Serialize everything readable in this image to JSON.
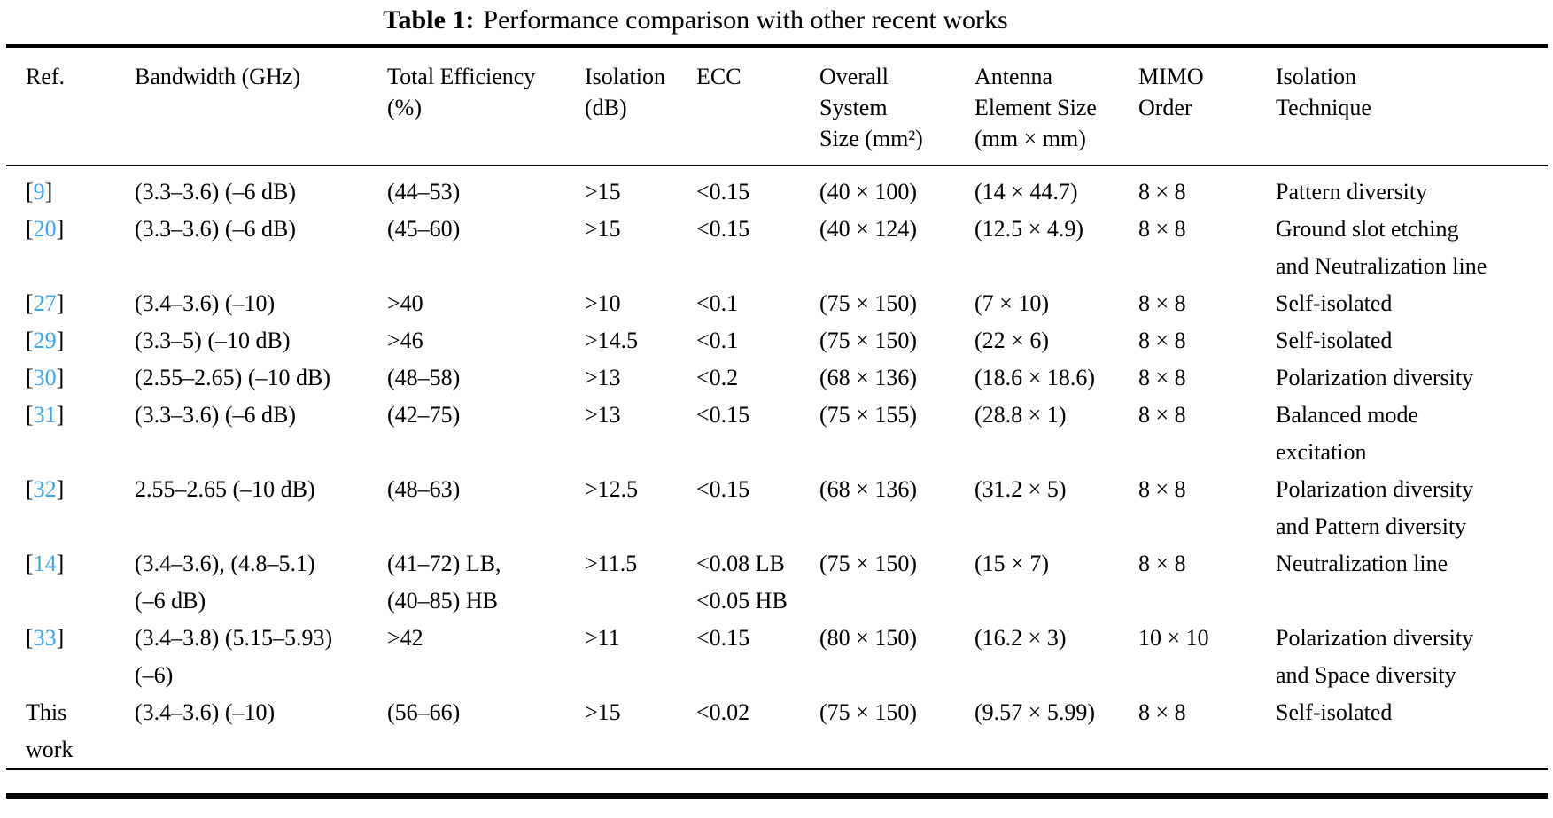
{
  "title": {
    "label": "Table 1:",
    "text": "Performance comparison with other recent works"
  },
  "colors": {
    "citation": "#3ba5f0",
    "text": "#000000",
    "background": "#ffffff",
    "rule": "#000000"
  },
  "table": {
    "citation_format": {
      "open": "[",
      "close": "]"
    },
    "headers": [
      "Ref.",
      "Bandwidth (GHz)",
      "Total Efficiency\n(%)",
      "Isolation\n(dB)",
      "ECC",
      "Overall\nSystem\nSize (mm²)",
      "Antenna\nElement Size\n(mm × mm)",
      "MIMO\nOrder",
      "Isolation\nTechnique"
    ],
    "rows": [
      {
        "ref": {
          "cite": "9"
        },
        "cells": [
          "(3.3–3.6) (–6 dB)",
          "(44–53)",
          ">15",
          "<0.15",
          "(40 × 100)",
          "(14 × 44.7)",
          "8 × 8",
          "Pattern diversity"
        ]
      },
      {
        "ref": {
          "cite": "20"
        },
        "cells": [
          "(3.3–3.6) (–6 dB)",
          "(45–60)",
          ">15",
          "<0.15",
          "(40 × 124)",
          "(12.5 × 4.9)",
          "8 × 8",
          "Ground slot etching\nand Neutralization line"
        ]
      },
      {
        "ref": {
          "cite": "27"
        },
        "cells": [
          "(3.4–3.6) (–10)",
          ">40",
          ">10",
          "<0.1",
          "(75 × 150)",
          "(7 × 10)",
          "8 × 8",
          "Self-isolated"
        ]
      },
      {
        "ref": {
          "cite": "29"
        },
        "cells": [
          "(3.3–5) (–10 dB)",
          ">46",
          ">14.5",
          "<0.1",
          "(75 × 150)",
          "(22 × 6)",
          "8 × 8",
          "Self-isolated"
        ]
      },
      {
        "ref": {
          "cite": "30"
        },
        "cells": [
          "(2.55–2.65) (–10 dB)",
          "(48–58)",
          ">13",
          "<0.2",
          "(68 × 136)",
          "(18.6 × 18.6)",
          "8 × 8",
          "Polarization diversity"
        ]
      },
      {
        "ref": {
          "cite": "31"
        },
        "cells": [
          "(3.3–3.6) (–6 dB)",
          "(42–75)",
          ">13",
          "<0.15",
          "(75 × 155)",
          "(28.8 × 1)",
          "8 × 8",
          "Balanced mode\nexcitation"
        ]
      },
      {
        "ref": {
          "cite": "32"
        },
        "cells": [
          "2.55–2.65 (–10 dB)",
          "(48–63)",
          ">12.5",
          "<0.15",
          "(68 × 136)",
          "(31.2 × 5)",
          "8 × 8",
          "Polarization diversity\nand Pattern diversity"
        ]
      },
      {
        "ref": {
          "cite": "14"
        },
        "cells": [
          "(3.4–3.6), (4.8–5.1)\n(–6 dB)",
          "(41–72) LB,\n(40–85) HB",
          ">11.5",
          "<0.08 LB\n<0.05 HB",
          "(75 × 150)",
          "(15 × 7)",
          "8 × 8",
          "Neutralization line"
        ]
      },
      {
        "ref": {
          "cite": "33"
        },
        "cells": [
          "(3.4–3.8) (5.15–5.93)\n(–6)",
          ">42",
          ">11",
          "<0.15",
          "(80 × 150)",
          "(16.2 × 3)",
          "10 × 10",
          "Polarization diversity\nand Space diversity"
        ]
      },
      {
        "ref": {
          "text": "This\nwork"
        },
        "cells": [
          "(3.4–3.6) (–10)",
          "(56–66)",
          ">15",
          "<0.02",
          "(75 × 150)",
          "(9.57 × 5.99)",
          "8 × 8",
          "Self-isolated"
        ]
      }
    ]
  }
}
